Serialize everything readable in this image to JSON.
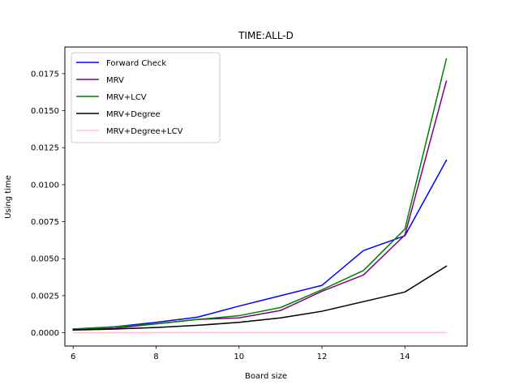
{
  "chart_data": {
    "type": "line",
    "title": "TIME:ALL-D",
    "xlabel": "Board size",
    "ylabel": "Using time",
    "xlim": [
      5.8,
      15.5
    ],
    "ylim": [
      -0.0009,
      0.0193
    ],
    "xticks": [
      6,
      8,
      10,
      12,
      14
    ],
    "xtick_labels": [
      "6",
      "8",
      "10",
      "12",
      "14"
    ],
    "yticks": [
      0.0,
      0.0025,
      0.005,
      0.0075,
      0.01,
      0.0125,
      0.015,
      0.0175
    ],
    "ytick_labels": [
      "0.0000",
      "0.0025",
      "0.0050",
      "0.0075",
      "0.0100",
      "0.0125",
      "0.0150",
      "0.0175"
    ],
    "grid": false,
    "legend_position": "upper-left",
    "x": [
      6,
      7,
      8,
      9,
      10,
      11,
      12,
      13,
      14,
      15
    ],
    "series": [
      {
        "name": "Forward Check",
        "color": "#0000ff",
        "values": [
          0.00025,
          0.0004,
          0.0007,
          0.00105,
          0.0018,
          0.0025,
          0.0032,
          0.00555,
          0.00655,
          0.01165
        ]
      },
      {
        "name": "MRV",
        "color": "#800080",
        "values": [
          0.0002,
          0.0003,
          0.0006,
          0.0009,
          0.001,
          0.0015,
          0.0028,
          0.0039,
          0.0066,
          0.017
        ]
      },
      {
        "name": "MRV+LCV",
        "color": "#008000",
        "values": [
          0.00025,
          0.0004,
          0.0006,
          0.0009,
          0.00115,
          0.0017,
          0.0029,
          0.0042,
          0.007,
          0.0185
        ]
      },
      {
        "name": "MRV+Degree",
        "color": "#000000",
        "values": [
          0.00018,
          0.00025,
          0.00035,
          0.0005,
          0.0007,
          0.001,
          0.00145,
          0.0021,
          0.00275,
          0.0045
        ]
      },
      {
        "name": "MRV+Degree+LCV",
        "color": "#ffc0cb",
        "values": [
          1e-05,
          1e-05,
          1e-05,
          1e-05,
          1e-05,
          1e-05,
          1e-05,
          1e-05,
          1e-05,
          1e-05
        ]
      }
    ]
  }
}
